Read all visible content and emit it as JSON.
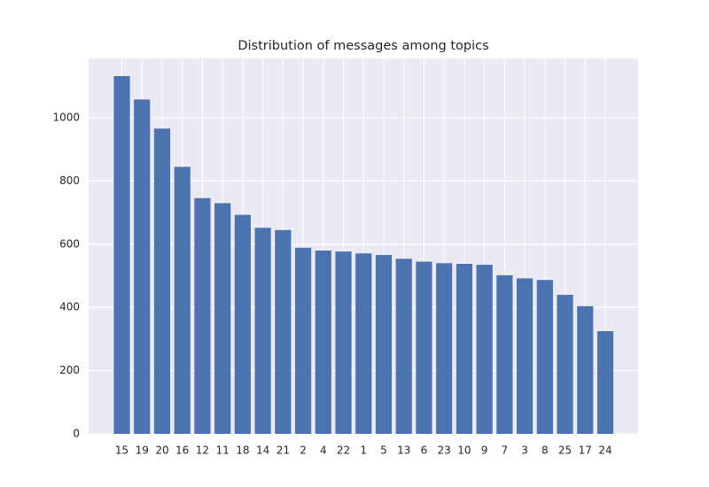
{
  "chart_data": {
    "type": "bar",
    "title": "Distribution of messages among topics",
    "xlabel": "",
    "ylabel": "",
    "categories": [
      "15",
      "19",
      "20",
      "16",
      "12",
      "11",
      "18",
      "14",
      "21",
      "2",
      "4",
      "22",
      "1",
      "5",
      "13",
      "6",
      "23",
      "10",
      "9",
      "7",
      "3",
      "8",
      "25",
      "17",
      "24"
    ],
    "values": [
      1132,
      1058,
      966,
      845,
      746,
      730,
      693,
      652,
      645,
      589,
      580,
      577,
      571,
      566,
      554,
      545,
      540,
      538,
      535,
      502,
      492,
      487,
      440,
      404,
      325
    ],
    "ylim": [
      0,
      1188
    ],
    "yticks": [
      0,
      200,
      400,
      600,
      800,
      1000
    ],
    "grid": true,
    "legend": "none",
    "colors": {
      "bar": "#4c72b0",
      "plot_background": "#eaeaf2",
      "grid": "#ffffff",
      "text": "#262626"
    }
  }
}
